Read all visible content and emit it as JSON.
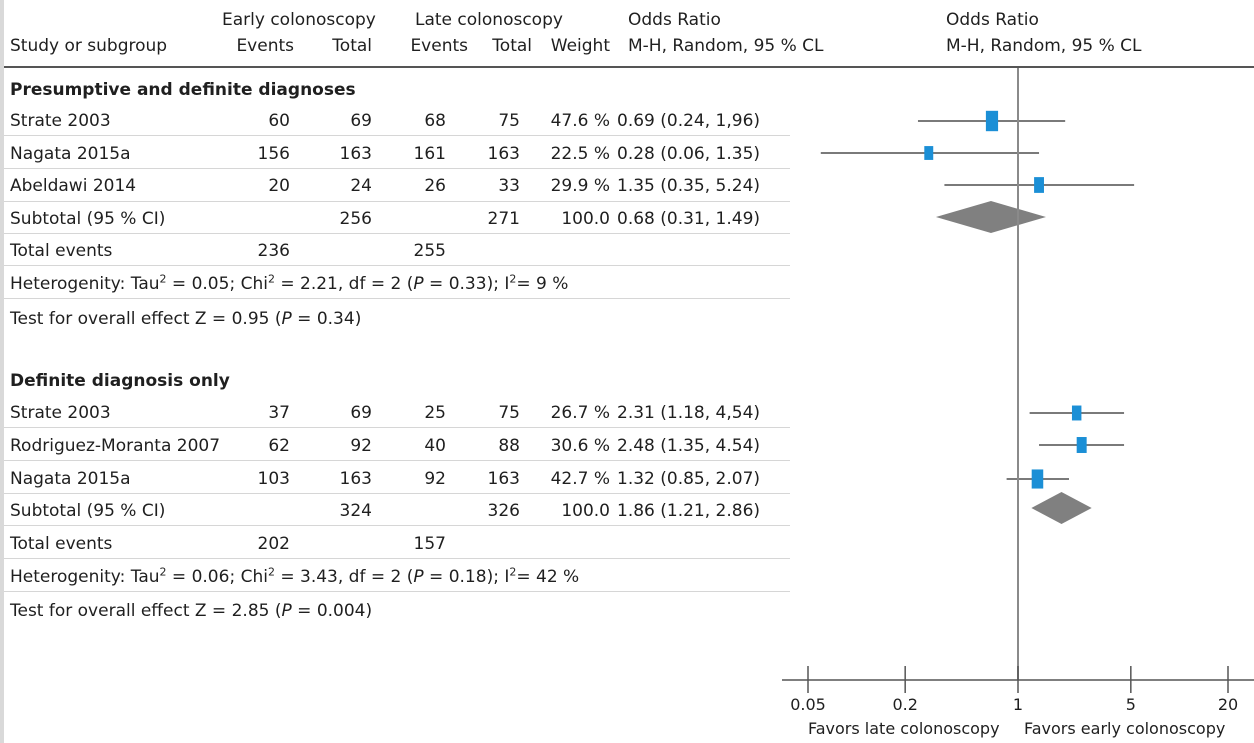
{
  "header": {
    "early_group": "Early colonoscopy",
    "late_group": "Late colonoscopy",
    "study_col": "Study or subgroup",
    "events": "Events",
    "total": "Total",
    "weight": "Weight",
    "or_title": "Odds Ratio",
    "or_method": "M-H, Random, 95 % CL",
    "plot_title": "Odds Ratio",
    "plot_method": "M-H, Random, 95 % CL"
  },
  "groups": [
    {
      "title": "Presumptive and definite diagnoses",
      "rows": [
        {
          "study": "Strate 2003",
          "e_events": "60",
          "e_total": "69",
          "l_events": "68",
          "l_total": "75",
          "weight": "47.6 %",
          "or_text": "0.69 (0.24, 1,96)"
        },
        {
          "study": "Nagata 2015a",
          "e_events": "156",
          "e_total": "163",
          "l_events": "161",
          "l_total": "163",
          "weight": "22.5 %",
          "or_text": "0.28 (0.06, 1.35)"
        },
        {
          "study": "Abeldawi 2014",
          "e_events": "20",
          "e_total": "24",
          "l_events": "26",
          "l_total": "33",
          "weight": "29.9 %",
          "or_text": "1.35 (0.35, 5.24)"
        }
      ],
      "subtotal": {
        "label": "Subtotal (95 % CI)",
        "e_total": "256",
        "l_total": "271",
        "weight": "100.0",
        "or_text": "0.68 (0.31, 1.49)"
      },
      "total_events": {
        "label": "Total events",
        "early": "236",
        "late": "255"
      },
      "heterogeneity": {
        "prefix": "Heterogenity: Tau",
        "tau2": "0.05",
        "chi2": "2.21",
        "df": "2",
        "p": "0.33",
        "i2": "9 %"
      },
      "overall": {
        "prefix": "Test for overall effect Z = ",
        "z": "0.95",
        "p": "0.34"
      }
    },
    {
      "title": "Definite diagnosis only",
      "rows": [
        {
          "study": "Strate 2003",
          "e_events": "37",
          "e_total": "69",
          "l_events": "25",
          "l_total": "75",
          "weight": "26.7 %",
          "or_text": "2.31 (1.18, 4,54)"
        },
        {
          "study": "Rodriguez-Moranta 2007",
          "e_events": "62",
          "e_total": "92",
          "l_events": "40",
          "l_total": "88",
          "weight": "30.6 %",
          "or_text": "2.48 (1.35, 4.54)"
        },
        {
          "study": "Nagata 2015a",
          "e_events": "103",
          "e_total": "163",
          "l_events": "92",
          "l_total": "163",
          "weight": "42.7 %",
          "or_text": "1.32 (0.85, 2.07)"
        }
      ],
      "subtotal": {
        "label": "Subtotal (95 % CI)",
        "e_total": "324",
        "l_total": "326",
        "weight": "100.0",
        "or_text": "1.86 (1.21, 2.86)"
      },
      "total_events": {
        "label": "Total events",
        "early": "202",
        "late": "157"
      },
      "heterogeneity": {
        "prefix": "Heterogenity: Tau",
        "tau2": "0.06",
        "chi2": "3.43",
        "df": "2",
        "p": "0.18",
        "i2": "42 %"
      },
      "overall": {
        "prefix": "Test for overall effect Z = ",
        "z": "2.85",
        "p": "0.004"
      }
    }
  ],
  "chart_data": {
    "type": "forest",
    "scale": "log",
    "xlim": [
      0.05,
      20
    ],
    "ticks": [
      "0.05",
      "0.2",
      "1",
      "5",
      "20"
    ],
    "tick_values": [
      0.05,
      0.2,
      1,
      5,
      20
    ],
    "favors_left": "Favors late colonoscopy",
    "favors_right": "Favors early colonoscopy",
    "colors": {
      "square": "#1b8fd6",
      "diamond": "#808080",
      "line": "#7a7a7a"
    },
    "series": [
      {
        "study": "Strate 2003",
        "group": 1,
        "or": 0.69,
        "lo": 0.24,
        "hi": 1.96,
        "weight": 47.6
      },
      {
        "study": "Nagata 2015a",
        "group": 1,
        "or": 0.28,
        "lo": 0.06,
        "hi": 1.35,
        "weight": 22.5
      },
      {
        "study": "Abeldawi 2014",
        "group": 1,
        "or": 1.35,
        "lo": 0.35,
        "hi": 5.24,
        "weight": 29.9
      },
      {
        "study": "Subtotal (95 % CI)",
        "group": 1,
        "or": 0.68,
        "lo": 0.31,
        "hi": 1.49,
        "subtotal": true
      },
      {
        "study": "Strate 2003",
        "group": 2,
        "or": 2.31,
        "lo": 1.18,
        "hi": 4.54,
        "weight": 26.7
      },
      {
        "study": "Rodriguez-Moranta 2007",
        "group": 2,
        "or": 2.48,
        "lo": 1.35,
        "hi": 4.54,
        "weight": 30.6
      },
      {
        "study": "Nagata 2015a",
        "group": 2,
        "or": 1.32,
        "lo": 0.85,
        "hi": 2.07,
        "weight": 42.7
      },
      {
        "study": "Subtotal (95 % CI)",
        "group": 2,
        "or": 1.86,
        "lo": 1.21,
        "hi": 2.86,
        "subtotal": true
      }
    ]
  }
}
